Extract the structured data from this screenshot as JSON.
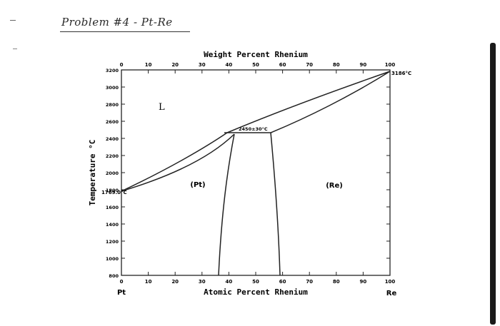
{
  "annotation": {
    "handwritten_title": "Problem #4 - Pt-Re"
  },
  "diagram": {
    "title": "Weight Percent Rhenium",
    "xlabel": "Atomic Percent Rhenium",
    "ylabel": "Temperature °C",
    "left_element": "Pt",
    "right_element": "Re",
    "top_ticks": [
      "0",
      "10",
      "20",
      "30",
      "40",
      "50",
      "60",
      "70",
      "80",
      "90",
      "100"
    ],
    "bottom_ticks": [
      "0",
      "10",
      "20",
      "30",
      "40",
      "50",
      "60",
      "70",
      "80",
      "90",
      "100"
    ],
    "y_ticks": [
      "3200",
      "3000",
      "2800",
      "2600",
      "2400",
      "2200",
      "2000",
      "1800",
      "1600",
      "1400",
      "1200",
      "1000",
      "800"
    ],
    "phases": {
      "liquid": "L",
      "pt_solid": "(Pt)",
      "re_solid": "(Re)"
    },
    "annotations": {
      "pt_melting": "1769.0°C",
      "re_melting": "3186°C",
      "peritectic": "2450±30°C"
    }
  },
  "chart_data": {
    "type": "phase-diagram",
    "x_range": [
      0,
      100
    ],
    "y_range": [
      800,
      3200
    ],
    "liquidus": [
      [
        0,
        1769
      ],
      [
        20,
        2120
      ],
      [
        40,
        2450
      ],
      [
        60,
        2700
      ],
      [
        80,
        2950
      ],
      [
        100,
        3186
      ]
    ],
    "solidus_re": [
      [
        100,
        3186
      ],
      [
        80,
        2820
      ],
      [
        60,
        2450
      ]
    ],
    "solidus_pt": [
      [
        0,
        1769
      ],
      [
        20,
        2000
      ],
      [
        40,
        2410
      ]
    ],
    "peritectic_line": [
      [
        40,
        2450
      ],
      [
        60,
        2450
      ]
    ],
    "solvus_pt": [
      [
        40,
        2410
      ],
      [
        37,
        1800
      ],
      [
        35,
        800
      ]
    ],
    "solvus_re": [
      [
        59,
        2450
      ],
      [
        61,
        1800
      ],
      [
        62,
        800
      ]
    ],
    "peritectic_temperature": 2450
  }
}
